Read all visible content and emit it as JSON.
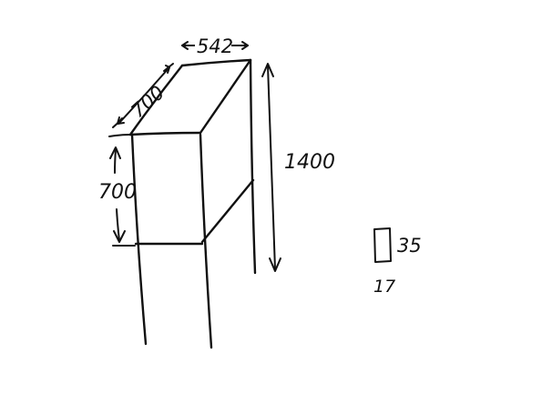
{
  "sketch": {
    "depth_label": "700",
    "width_label": "542",
    "height_total_label": "1400",
    "height_box_label": "700",
    "small_rect_height_label": "35",
    "small_rect_width_label": "17"
  },
  "colors": {
    "ink": "#111111",
    "paper": "#ffffff"
  }
}
